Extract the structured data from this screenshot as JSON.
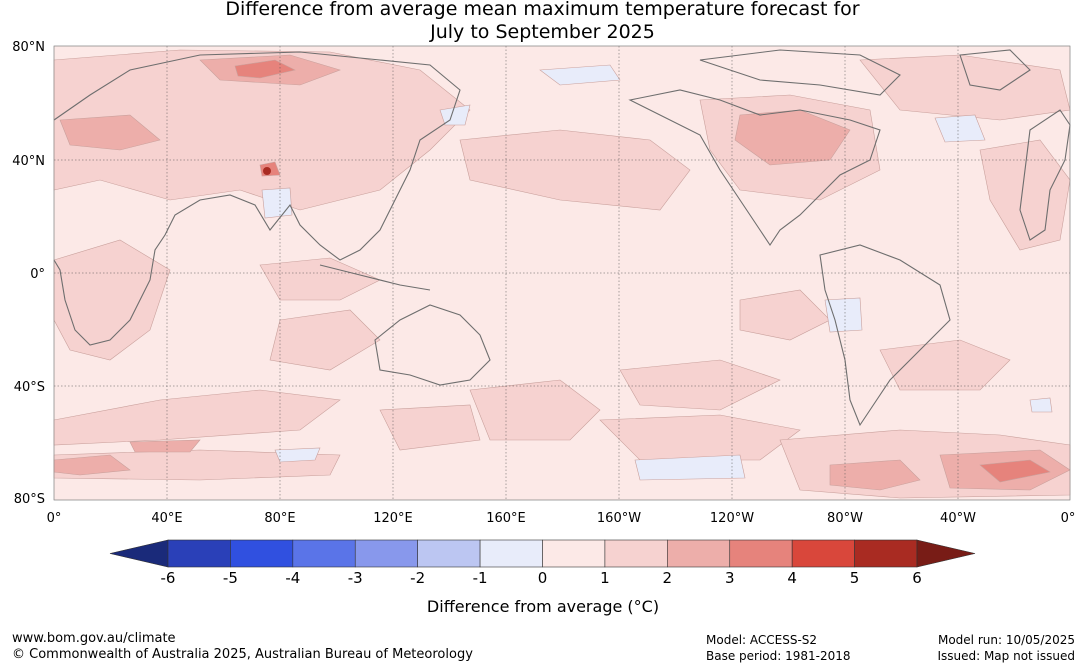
{
  "title_line1": "Difference from average mean maximum temperature forecast for",
  "title_line2": "July to September 2025",
  "map": {
    "lat_labels": [
      "80°N",
      "40°N",
      "0°",
      "40°S",
      "80°S"
    ],
    "lat_values": [
      80,
      40,
      0,
      -40,
      -80
    ],
    "lon_labels": [
      "0°",
      "40°E",
      "80°E",
      "120°E",
      "160°E",
      "160°W",
      "120°W",
      "80°W",
      "40°W",
      "0°"
    ],
    "lon_values": [
      0,
      40,
      80,
      120,
      160,
      200,
      240,
      280,
      320,
      360
    ],
    "background_anomaly_range": "0 to 1"
  },
  "colorbar": {
    "ticks": [
      "-6",
      "-5",
      "-4",
      "-3",
      "-2",
      "-1",
      "0",
      "1",
      "2",
      "3",
      "4",
      "5",
      "6"
    ],
    "colors": [
      "#1a2a7a",
      "#2a40b8",
      "#3050e0",
      "#5a74e8",
      "#8898ec",
      "#bcc6f2",
      "#e8ecfa",
      "#fce9e7",
      "#f6d2d0",
      "#edaeaa",
      "#e6837c",
      "#d9473b",
      "#a92b22",
      "#781c16"
    ],
    "title": "Difference from average (°C)"
  },
  "footer": {
    "url": "www.bom.gov.au/climate",
    "copyright": "© Commonwealth of Australia 2025, Australian Bureau of Meteorology",
    "model": "Model: ACCESS-S2",
    "base_period": "Base period: 1981-2018",
    "model_run": "Model run: 10/05/2025",
    "issued": "Issued: Map not issued"
  }
}
